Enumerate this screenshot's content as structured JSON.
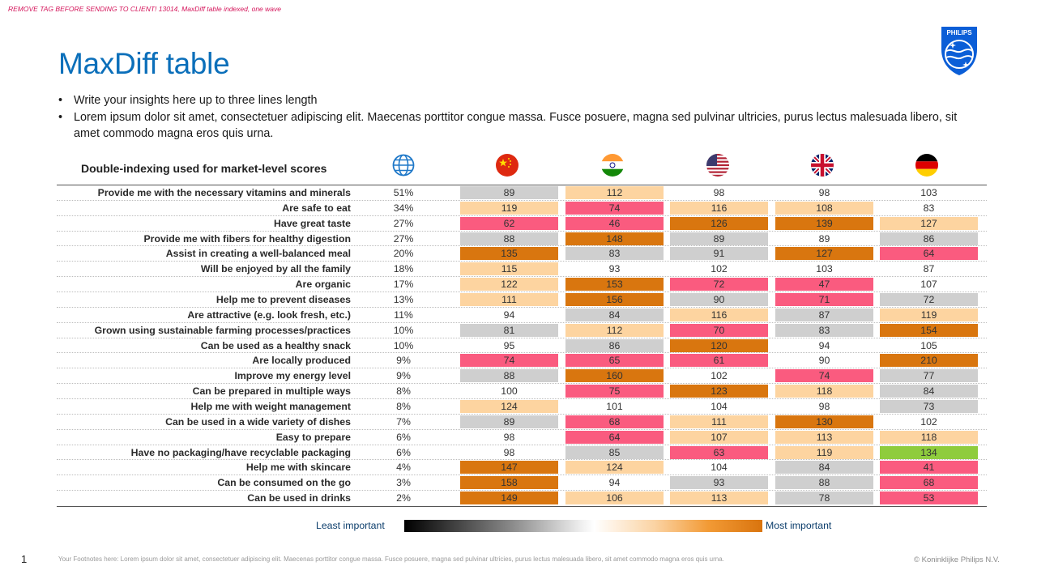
{
  "tag": "REMOVE TAG BEFORE SENDING TO CLIENT! 13014, MaxDiff table indexed, one wave",
  "title": "MaxDiff table",
  "logo_text": "PHILIPS",
  "bullets": [
    "Write your insights here up to three lines length",
    "Lorem ipsum dolor sit amet, consectetuer adipiscing elit. Maecenas porttitor congue massa. Fusce posuere, magna sed pulvinar ultricies, purus lectus malesuada libero, sit amet commodo magna eros quis urna."
  ],
  "table": {
    "header_title": "Double-indexing used for market-level scores",
    "columns": [
      "globe-icon",
      "china-flag-icon",
      "india-flag-icon",
      "usa-flag-icon",
      "uk-flag-icon",
      "germany-flag-icon"
    ],
    "colors": {
      "grey": "#cfcfcf",
      "light_orange": "#fdd4a0",
      "dark_orange": "#d9760f",
      "pink": "#fa5b7f",
      "green": "#8fcc3d",
      "white": "#ffffff"
    },
    "rows": [
      {
        "label": "Provide me with the necessary vitamins and minerals",
        "pct": "51%",
        "cells": [
          [
            "89",
            "grey"
          ],
          [
            "112",
            "light_orange"
          ],
          [
            "98",
            "white"
          ],
          [
            "98",
            "white"
          ],
          [
            "103",
            "white"
          ]
        ]
      },
      {
        "label": "Are safe to eat",
        "pct": "34%",
        "cells": [
          [
            "119",
            "light_orange"
          ],
          [
            "74",
            "pink"
          ],
          [
            "116",
            "light_orange"
          ],
          [
            "108",
            "light_orange"
          ],
          [
            "83",
            "white"
          ]
        ]
      },
      {
        "label": "Have great taste",
        "pct": "27%",
        "cells": [
          [
            "62",
            "pink"
          ],
          [
            "46",
            "pink"
          ],
          [
            "126",
            "dark_orange"
          ],
          [
            "139",
            "dark_orange"
          ],
          [
            "127",
            "light_orange"
          ]
        ]
      },
      {
        "label": "Provide me with fibers for healthy digestion",
        "pct": "27%",
        "cells": [
          [
            "88",
            "grey"
          ],
          [
            "148",
            "dark_orange"
          ],
          [
            "89",
            "grey"
          ],
          [
            "89",
            "white"
          ],
          [
            "86",
            "grey"
          ]
        ]
      },
      {
        "label": "Assist in creating a well-balanced meal",
        "pct": "20%",
        "cells": [
          [
            "135",
            "dark_orange"
          ],
          [
            "83",
            "grey"
          ],
          [
            "91",
            "grey"
          ],
          [
            "127",
            "dark_orange"
          ],
          [
            "64",
            "pink"
          ]
        ]
      },
      {
        "label": "Will be enjoyed by all the family",
        "pct": "18%",
        "cells": [
          [
            "115",
            "light_orange"
          ],
          [
            "93",
            "white"
          ],
          [
            "102",
            "white"
          ],
          [
            "103",
            "white"
          ],
          [
            "87",
            "white"
          ]
        ]
      },
      {
        "label": "Are organic",
        "pct": "17%",
        "cells": [
          [
            "122",
            "light_orange"
          ],
          [
            "153",
            "dark_orange"
          ],
          [
            "72",
            "pink"
          ],
          [
            "47",
            "pink"
          ],
          [
            "107",
            "white"
          ]
        ]
      },
      {
        "label": "Help me to prevent diseases",
        "pct": "13%",
        "cells": [
          [
            "111",
            "light_orange"
          ],
          [
            "156",
            "dark_orange"
          ],
          [
            "90",
            "grey"
          ],
          [
            "71",
            "pink"
          ],
          [
            "72",
            "grey"
          ]
        ]
      },
      {
        "label": "Are attractive (e.g. look fresh, etc.)",
        "pct": "11%",
        "cells": [
          [
            "94",
            "white"
          ],
          [
            "84",
            "grey"
          ],
          [
            "116",
            "light_orange"
          ],
          [
            "87",
            "grey"
          ],
          [
            "119",
            "light_orange"
          ]
        ]
      },
      {
        "label": "Grown using sustainable farming processes/practices",
        "pct": "10%",
        "cells": [
          [
            "81",
            "grey"
          ],
          [
            "112",
            "light_orange"
          ],
          [
            "70",
            "pink"
          ],
          [
            "83",
            "grey"
          ],
          [
            "154",
            "dark_orange"
          ]
        ]
      },
      {
        "label": "Can be used as a healthy snack",
        "pct": "10%",
        "cells": [
          [
            "95",
            "white"
          ],
          [
            "86",
            "grey"
          ],
          [
            "120",
            "dark_orange"
          ],
          [
            "94",
            "white"
          ],
          [
            "105",
            "white"
          ]
        ]
      },
      {
        "label": "Are locally produced",
        "pct": "9%",
        "cells": [
          [
            "74",
            "pink"
          ],
          [
            "65",
            "pink"
          ],
          [
            "61",
            "pink"
          ],
          [
            "90",
            "white"
          ],
          [
            "210",
            "dark_orange"
          ]
        ]
      },
      {
        "label": "Improve my energy level",
        "pct": "9%",
        "cells": [
          [
            "88",
            "grey"
          ],
          [
            "160",
            "dark_orange"
          ],
          [
            "102",
            "white"
          ],
          [
            "74",
            "pink"
          ],
          [
            "77",
            "grey"
          ]
        ]
      },
      {
        "label": "Can be prepared in multiple ways",
        "pct": "8%",
        "cells": [
          [
            "100",
            "white"
          ],
          [
            "75",
            "pink"
          ],
          [
            "123",
            "dark_orange"
          ],
          [
            "118",
            "light_orange"
          ],
          [
            "84",
            "grey"
          ]
        ]
      },
      {
        "label": "Help me with weight management",
        "pct": "8%",
        "cells": [
          [
            "124",
            "light_orange"
          ],
          [
            "101",
            "white"
          ],
          [
            "104",
            "white"
          ],
          [
            "98",
            "white"
          ],
          [
            "73",
            "grey"
          ]
        ]
      },
      {
        "label": "Can be used in a wide variety of dishes",
        "pct": "7%",
        "cells": [
          [
            "89",
            "grey"
          ],
          [
            "68",
            "pink"
          ],
          [
            "111",
            "light_orange"
          ],
          [
            "130",
            "dark_orange"
          ],
          [
            "102",
            "white"
          ]
        ]
      },
      {
        "label": "Easy to prepare",
        "pct": "6%",
        "cells": [
          [
            "98",
            "white"
          ],
          [
            "64",
            "pink"
          ],
          [
            "107",
            "light_orange"
          ],
          [
            "113",
            "light_orange"
          ],
          [
            "118",
            "light_orange"
          ]
        ]
      },
      {
        "label": "Have no packaging/have recyclable packaging",
        "pct": "6%",
        "cells": [
          [
            "98",
            "white"
          ],
          [
            "85",
            "grey"
          ],
          [
            "63",
            "pink"
          ],
          [
            "119",
            "light_orange"
          ],
          [
            "134",
            "green"
          ]
        ]
      },
      {
        "label": "Help me with skincare",
        "pct": "4%",
        "cells": [
          [
            "147",
            "dark_orange"
          ],
          [
            "124",
            "light_orange"
          ],
          [
            "104",
            "white"
          ],
          [
            "84",
            "grey"
          ],
          [
            "41",
            "pink"
          ]
        ]
      },
      {
        "label": "Can be consumed on the go",
        "pct": "3%",
        "cells": [
          [
            "158",
            "dark_orange"
          ],
          [
            "94",
            "white"
          ],
          [
            "93",
            "grey"
          ],
          [
            "88",
            "grey"
          ],
          [
            "68",
            "pink"
          ]
        ]
      },
      {
        "label": "Can be used in drinks",
        "pct": "2%",
        "cells": [
          [
            "149",
            "dark_orange"
          ],
          [
            "106",
            "light_orange"
          ],
          [
            "113",
            "light_orange"
          ],
          [
            "78",
            "grey"
          ],
          [
            "53",
            "pink"
          ]
        ]
      }
    ]
  },
  "legend": {
    "least": "Least important",
    "most": "Most important"
  },
  "page_number": "1",
  "footnote": "Your Footnotes here: Lorem ipsum dolor sit amet, consectetuer adipiscing elit. Maecenas porttitor congue massa. Fusce posuere, magna sed pulvinar ultricies, purus lectus malesuada libero, sit amet commodo magna eros quis urna.",
  "copyright": "© Koninklijke Philips N.V."
}
